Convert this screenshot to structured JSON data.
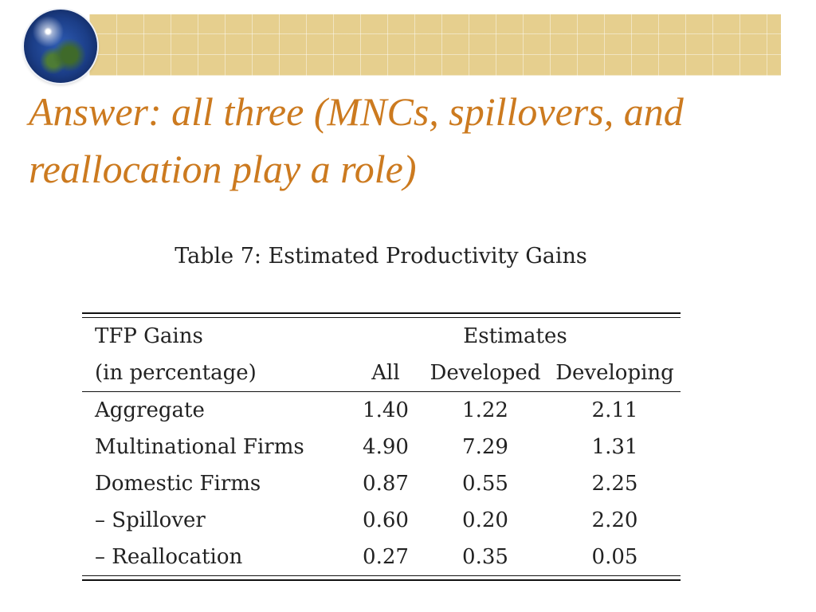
{
  "slide": {
    "title": "Answer: all three (MNCs, spillovers, and reallocation play a role)",
    "banner_icon": "globe-icon",
    "title_color": "#cc7a1f",
    "banner_color": "#e6cf8e"
  },
  "table": {
    "caption": "Table 7: Estimated Productivity Gains",
    "header": {
      "row1_label": "TFP Gains",
      "group_label": "Estimates",
      "row2_label": "(in percentage)",
      "columns": [
        "All",
        "Developed",
        "Developing"
      ]
    },
    "rows": [
      {
        "label": "Aggregate",
        "values": [
          "1.40",
          "1.22",
          "2.11"
        ]
      },
      {
        "label": "Multinational Firms",
        "values": [
          "4.90",
          "7.29",
          "1.31"
        ]
      },
      {
        "label": "Domestic Firms",
        "values": [
          "0.87",
          "0.55",
          "2.25"
        ]
      },
      {
        "label": "– Spillover",
        "values": [
          "0.60",
          "0.20",
          "2.20"
        ]
      },
      {
        "label": "– Reallocation",
        "values": [
          "0.27",
          "0.35",
          "0.05"
        ]
      }
    ]
  }
}
